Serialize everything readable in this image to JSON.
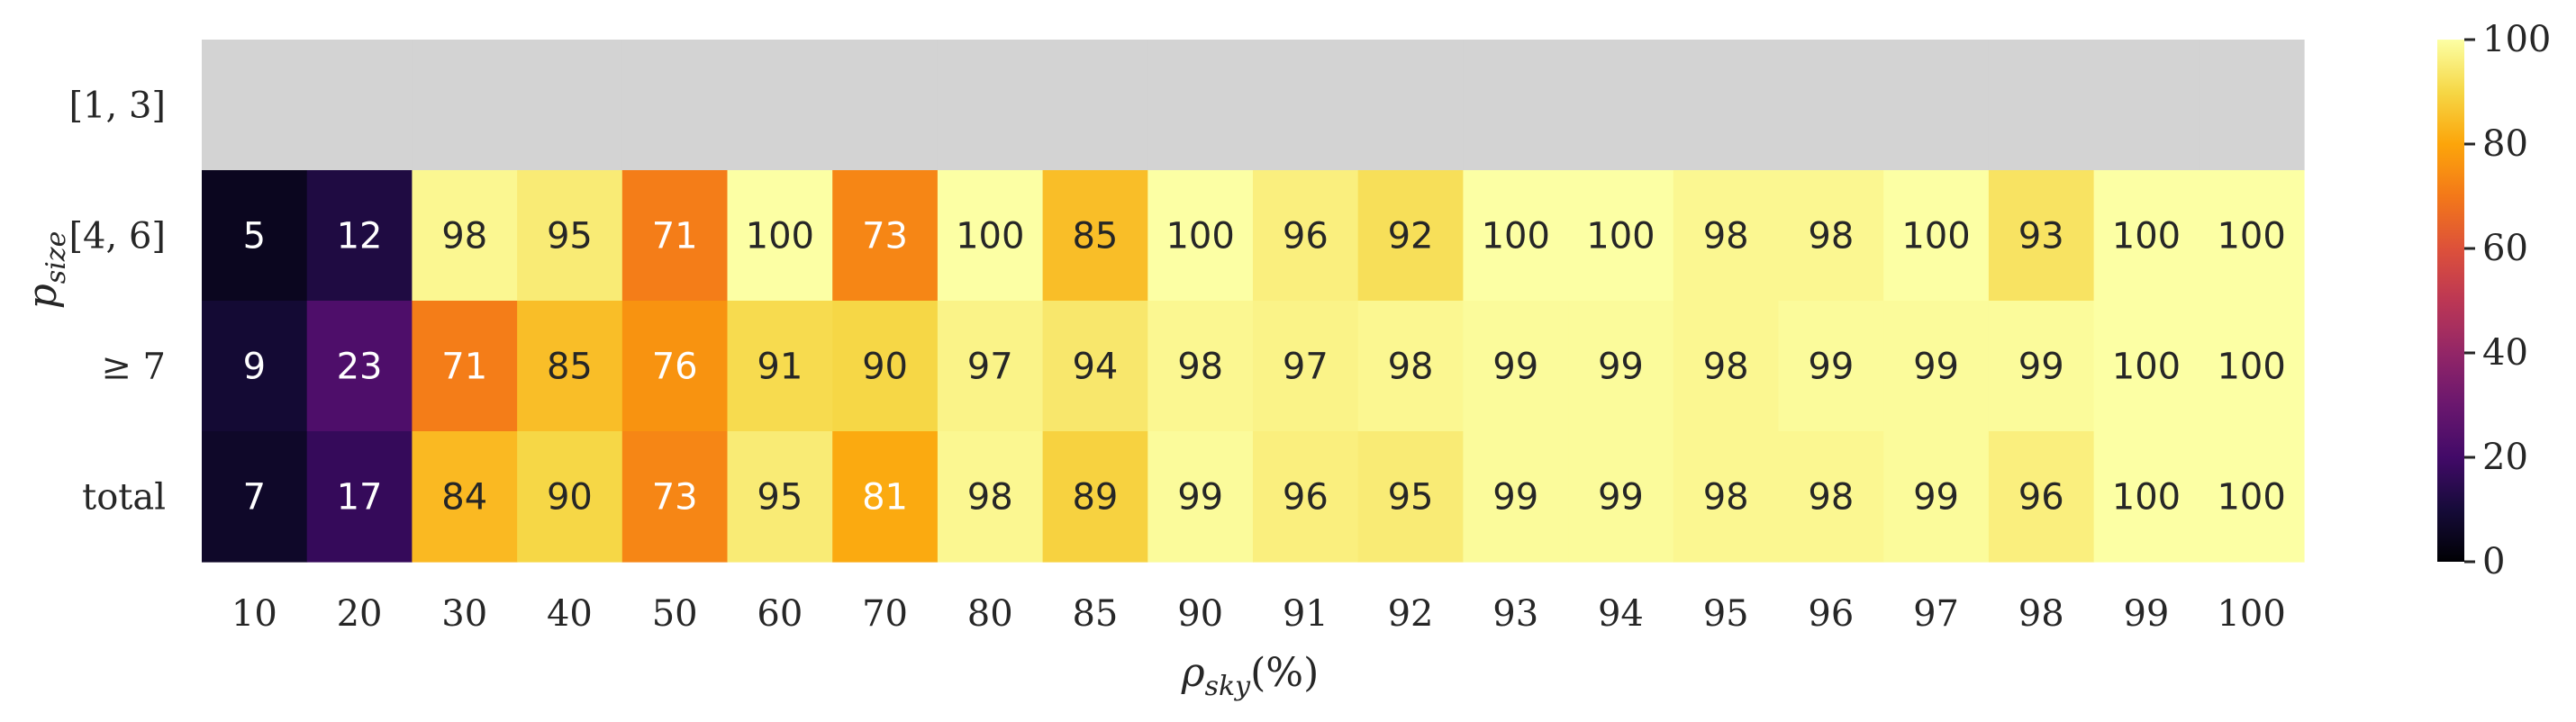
{
  "chart_data": {
    "type": "heatmap",
    "title": "",
    "xlabel": "ρ",
    "xlabel_sub": "sky",
    "xlabel_suffix": "(%)",
    "ylabel": "p",
    "ylabel_sub": "size",
    "x_categories": [
      "10",
      "20",
      "30",
      "40",
      "50",
      "60",
      "70",
      "80",
      "85",
      "90",
      "91",
      "92",
      "93",
      "94",
      "95",
      "96",
      "97",
      "98",
      "99",
      "100"
    ],
    "y_categories": [
      "[1, 3]",
      "[4, 6]",
      "≥ 7",
      "total"
    ],
    "values": [
      [
        null,
        null,
        null,
        null,
        null,
        null,
        null,
        null,
        null,
        null,
        null,
        null,
        null,
        null,
        null,
        null,
        null,
        null,
        null,
        null
      ],
      [
        5,
        12,
        98,
        95,
        71,
        100,
        73,
        100,
        85,
        100,
        96,
        92,
        100,
        100,
        98,
        98,
        100,
        93,
        100,
        100
      ],
      [
        9,
        23,
        71,
        85,
        76,
        91,
        90,
        97,
        94,
        98,
        97,
        98,
        99,
        99,
        98,
        99,
        99,
        99,
        100,
        100
      ],
      [
        7,
        17,
        84,
        90,
        73,
        95,
        81,
        98,
        89,
        99,
        96,
        95,
        99,
        99,
        98,
        98,
        99,
        96,
        100,
        100
      ]
    ],
    "missing_color": "#d3d3d3",
    "colormap": "inferno",
    "vmin": 0,
    "vmax": 100,
    "colorbar_ticks": [
      "0",
      "20",
      "40",
      "60",
      "80",
      "100"
    ],
    "colorbar_tick_values": [
      0,
      20,
      40,
      60,
      80,
      100
    ],
    "grid": false,
    "legend": "right colorbar"
  }
}
